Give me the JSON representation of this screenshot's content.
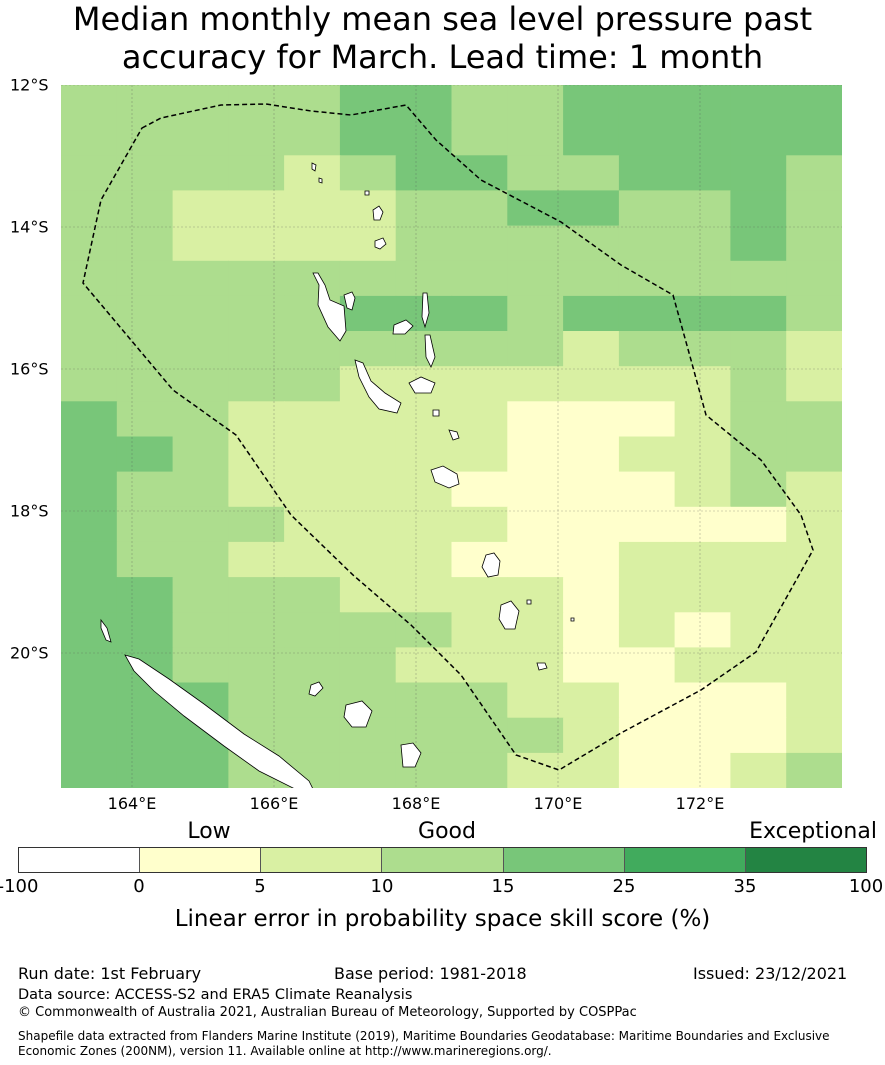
{
  "title_line1": "Median monthly mean sea level pressure past",
  "title_line2": "accuracy for March. Lead time: 1 month",
  "map": {
    "lon_range": [
      163.0,
      174.0
    ],
    "lat_range": [
      -21.9,
      -12.0
    ],
    "lat_ticks": [
      "12°S",
      "14°S",
      "16°S",
      "18°S",
      "20°S"
    ],
    "lon_ticks": [
      "164°E",
      "166°E",
      "168°E",
      "170°E",
      "172°E"
    ],
    "grid": true
  },
  "legend": {
    "categories": [
      "Low",
      "Good",
      "Exceptional"
    ],
    "ticks": [
      "-100",
      "0",
      "5",
      "10",
      "15",
      "25",
      "35",
      "100"
    ],
    "colors": [
      "#ffffff",
      "#ffffcc",
      "#d9f0a3",
      "#addd8e",
      "#78c679",
      "#41ab5d",
      "#238443"
    ],
    "label": "Linear error in probability space skill score (%)"
  },
  "footer": {
    "run_date": "Run date: 1st February",
    "base_period": "Base period: 1981-2018",
    "issued": "Issued: 23/12/2021",
    "data_source": "Data source: ACCESS-S2 and ERA5 Climate Reanalysis",
    "copyright": "© Commonwealth of Australia 2021, Australian Bureau of Meteorology, Supported by COSPPac",
    "shapefile_line1": "Shapefile data extracted from Flanders Marine Institute (2019), Maritime Boundaries Geodatabase: Maritime Boundaries and Exclusive",
    "shapefile_line2": "Economic Zones (200NM), version 11. Available online at http://www.marineregions.org/."
  }
}
